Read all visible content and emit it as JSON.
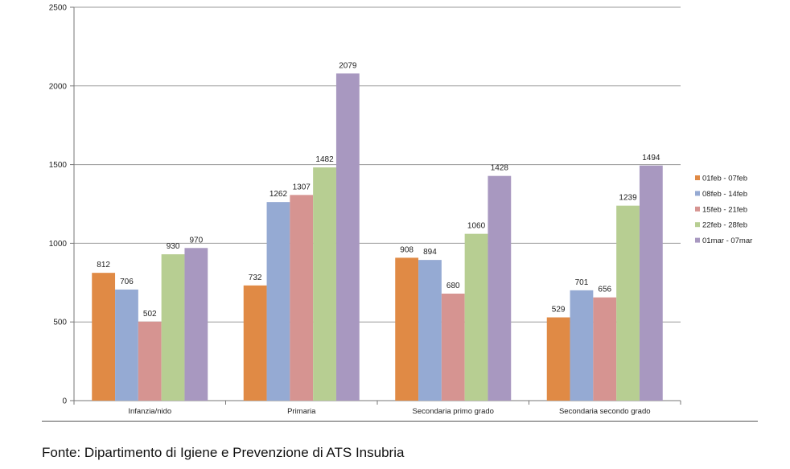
{
  "chart_data": {
    "type": "bar",
    "categories": [
      "Infanzia/nido",
      "Primaria",
      "Secondaria primo grado",
      "Secondaria secondo grado"
    ],
    "series": [
      {
        "name": "01feb - 07feb",
        "color": "#E08A45",
        "values": [
          812,
          732,
          908,
          529
        ]
      },
      {
        "name": "08feb - 14feb",
        "color": "#95AAD3",
        "values": [
          706,
          1262,
          894,
          701
        ]
      },
      {
        "name": "15feb - 21feb",
        "color": "#D69491",
        "values": [
          502,
          1307,
          680,
          656
        ]
      },
      {
        "name": "22feb - 28feb",
        "color": "#B7CE92",
        "values": [
          930,
          1482,
          1060,
          1239
        ]
      },
      {
        "name": "01mar - 07mar",
        "color": "#A898C0",
        "values": [
          970,
          2079,
          1428,
          1494
        ]
      }
    ],
    "ylim": [
      0,
      2500
    ],
    "yticks": [
      "0",
      "500",
      "1000",
      "1500",
      "2000",
      "2500"
    ],
    "grid": true,
    "legend": "right",
    "data_labels": true
  },
  "source_note": "Fonte: Dipartimento di Igiene e Prevenzione di ATS Insubria"
}
